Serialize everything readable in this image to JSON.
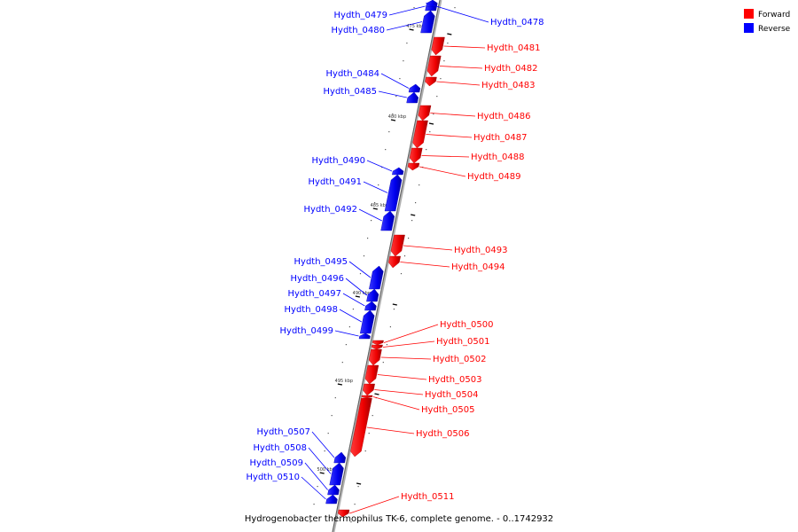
{
  "title": "Hydrogenobacter thermophilus TK-6, complete genome. - 0..1742932",
  "legend": [
    {
      "label": "Forward",
      "color": "#ff0000"
    },
    {
      "label": "Reverse",
      "color": "#0000ff"
    }
  ],
  "colors": {
    "forward": "#ff0000",
    "reverse": "#0000ff",
    "backbone": "#808080"
  },
  "ticks": [
    {
      "label": "475 kbp"
    },
    {
      "label": "480 kbp"
    },
    {
      "label": "485 kbp"
    },
    {
      "label": "490 kbp"
    },
    {
      "label": "495 kbp"
    },
    {
      "label": "500 kbp"
    }
  ],
  "genes": [
    {
      "name": "Hydth_0479",
      "strand": "reverse"
    },
    {
      "name": "Hydth_0478",
      "strand": "reverse"
    },
    {
      "name": "Hydth_0480",
      "strand": "reverse"
    },
    {
      "name": "Hydth_0481",
      "strand": "forward"
    },
    {
      "name": "Hydth_0482",
      "strand": "forward"
    },
    {
      "name": "Hydth_0484",
      "strand": "reverse"
    },
    {
      "name": "Hydth_0483",
      "strand": "forward"
    },
    {
      "name": "Hydth_0485",
      "strand": "reverse"
    },
    {
      "name": "Hydth_0486",
      "strand": "forward"
    },
    {
      "name": "Hydth_0487",
      "strand": "forward"
    },
    {
      "name": "Hydth_0488",
      "strand": "forward"
    },
    {
      "name": "Hydth_0490",
      "strand": "reverse"
    },
    {
      "name": "Hydth_0489",
      "strand": "forward"
    },
    {
      "name": "Hydth_0491",
      "strand": "reverse"
    },
    {
      "name": "Hydth_0492",
      "strand": "reverse"
    },
    {
      "name": "Hydth_0493",
      "strand": "forward"
    },
    {
      "name": "Hydth_0495",
      "strand": "reverse"
    },
    {
      "name": "Hydth_0494",
      "strand": "forward"
    },
    {
      "name": "Hydth_0496",
      "strand": "reverse"
    },
    {
      "name": "Hydth_0497",
      "strand": "reverse"
    },
    {
      "name": "Hydth_0498",
      "strand": "reverse"
    },
    {
      "name": "Hydth_0500",
      "strand": "forward"
    },
    {
      "name": "Hydth_0499",
      "strand": "reverse"
    },
    {
      "name": "Hydth_0501",
      "strand": "forward"
    },
    {
      "name": "Hydth_0502",
      "strand": "forward"
    },
    {
      "name": "Hydth_0503",
      "strand": "forward"
    },
    {
      "name": "Hydth_0504",
      "strand": "forward"
    },
    {
      "name": "Hydth_0505",
      "strand": "forward"
    },
    {
      "name": "Hydth_0506",
      "strand": "forward"
    },
    {
      "name": "Hydth_0507",
      "strand": "reverse"
    },
    {
      "name": "Hydth_0508",
      "strand": "reverse"
    },
    {
      "name": "Hydth_0509",
      "strand": "reverse"
    },
    {
      "name": "Hydth_0510",
      "strand": "reverse"
    },
    {
      "name": "Hydth_0511",
      "strand": "forward"
    }
  ]
}
